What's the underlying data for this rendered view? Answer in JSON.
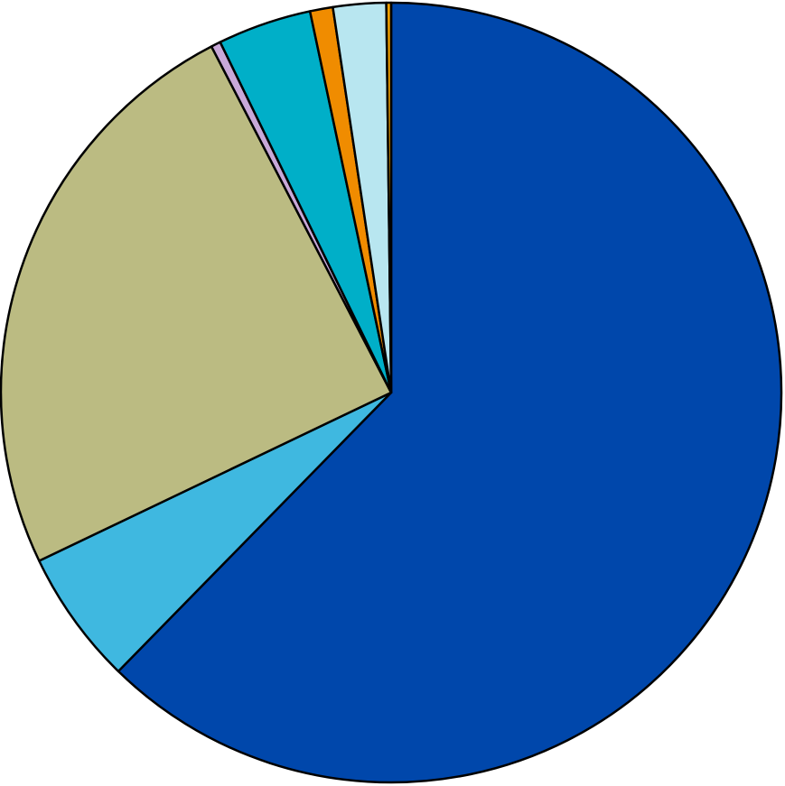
{
  "chart_data": {
    "type": "pie",
    "title": "",
    "legend": "none",
    "start": "top",
    "direction": "clockwise",
    "slices": [
      {
        "value": 62.6,
        "color": "#0047AB"
      },
      {
        "value": 5.6,
        "color": "#3FB8E0"
      },
      {
        "value": 24.6,
        "color": "#BBBB82"
      },
      {
        "value": 0.4,
        "color": "#C8A8D8"
      },
      {
        "value": 3.9,
        "color": "#00AFC8"
      },
      {
        "value": 0.95,
        "color": "#F08C00"
      },
      {
        "value": 2.2,
        "color": "#B8E6F0"
      },
      {
        "value": 0.2,
        "color": "#F0A000"
      }
    ]
  }
}
